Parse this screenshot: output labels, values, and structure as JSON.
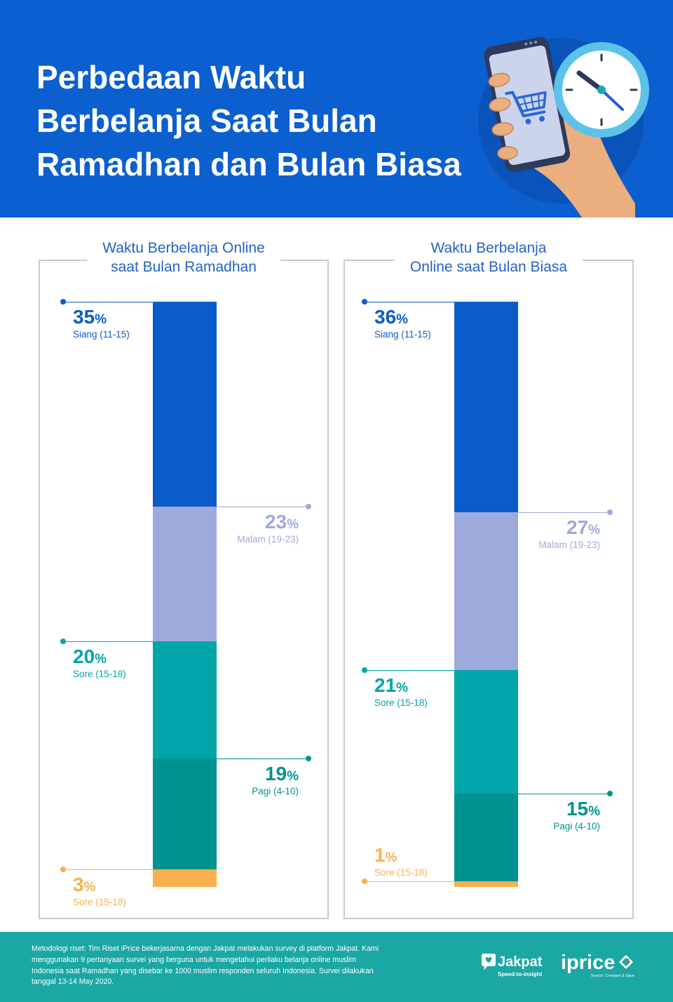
{
  "header": {
    "title_lines": [
      "Perbedaan Waktu",
      "Berbelanja Saat Bulan",
      "Ramadhan dan Bulan Biasa"
    ],
    "icons": [
      "phone-icon",
      "shopping-cart-icon",
      "clock-icon"
    ]
  },
  "colors": {
    "header_bg": "#0b5fcf",
    "footer_bg": "#1ba7a4",
    "panel_title": "#2463c7",
    "panel_border": "#c8cbd0"
  },
  "chart_data": [
    {
      "type": "bar",
      "stacked": true,
      "orientation": "vertical",
      "title_lines": [
        "Waktu Berbelanja Online",
        "saat Bulan Ramadhan"
      ],
      "unit": "%",
      "ylim": [
        0,
        100
      ],
      "segments": [
        {
          "label": "Siang (11-15)",
          "value": 35,
          "color": "#0a5dc8"
        },
        {
          "label": "Malam (19-23)",
          "value": 23,
          "color": "#9ea9dc"
        },
        {
          "label": "Sore (15-18)",
          "value": 20,
          "color": "#00a5aa"
        },
        {
          "label": "Pagi (4-10)",
          "value": 19,
          "color": "#00928f"
        },
        {
          "label": "Sore (15-18)",
          "value": 3,
          "color": "#fbb04b"
        }
      ]
    },
    {
      "type": "bar",
      "stacked": true,
      "orientation": "vertical",
      "title_lines": [
        "Waktu Berbelanja",
        "Online saat Bulan Biasa"
      ],
      "unit": "%",
      "ylim": [
        0,
        100
      ],
      "segments": [
        {
          "label": "Siang (11-15)",
          "value": 36,
          "color": "#0a5dc8"
        },
        {
          "label": "Malam (19-23)",
          "value": 27,
          "color": "#9ea9dc"
        },
        {
          "label": "Sore (15-18)",
          "value": 21,
          "color": "#00a5aa"
        },
        {
          "label": "Pagi (4-10)",
          "value": 15,
          "color": "#00928f"
        },
        {
          "label": "Sore (15-18)",
          "value": 1,
          "color": "#fbb04b"
        }
      ]
    }
  ],
  "footer": {
    "methodology_lines": [
      "Metodologi riset: Tim Riset iPrice bekerjasama dengan Jakpat melakukan survey di platform Jakpat. Kami",
      "menggunakan 9 pertanyaan survei yang berguna untuk mengetahui perilaku belanja online muslim",
      "Indonesia saat Ramadhan yang disebar ke 1000 muslim responden seluruh Indonesia. Survei dilakukan",
      "tanggal 13-14 May 2020."
    ],
    "logos": {
      "jakpat": {
        "name": "Jakpat",
        "tagline": "Speed-to-insight"
      },
      "iprice": {
        "name": "iprice",
        "tagline": "Search, Compare & Save"
      }
    }
  }
}
